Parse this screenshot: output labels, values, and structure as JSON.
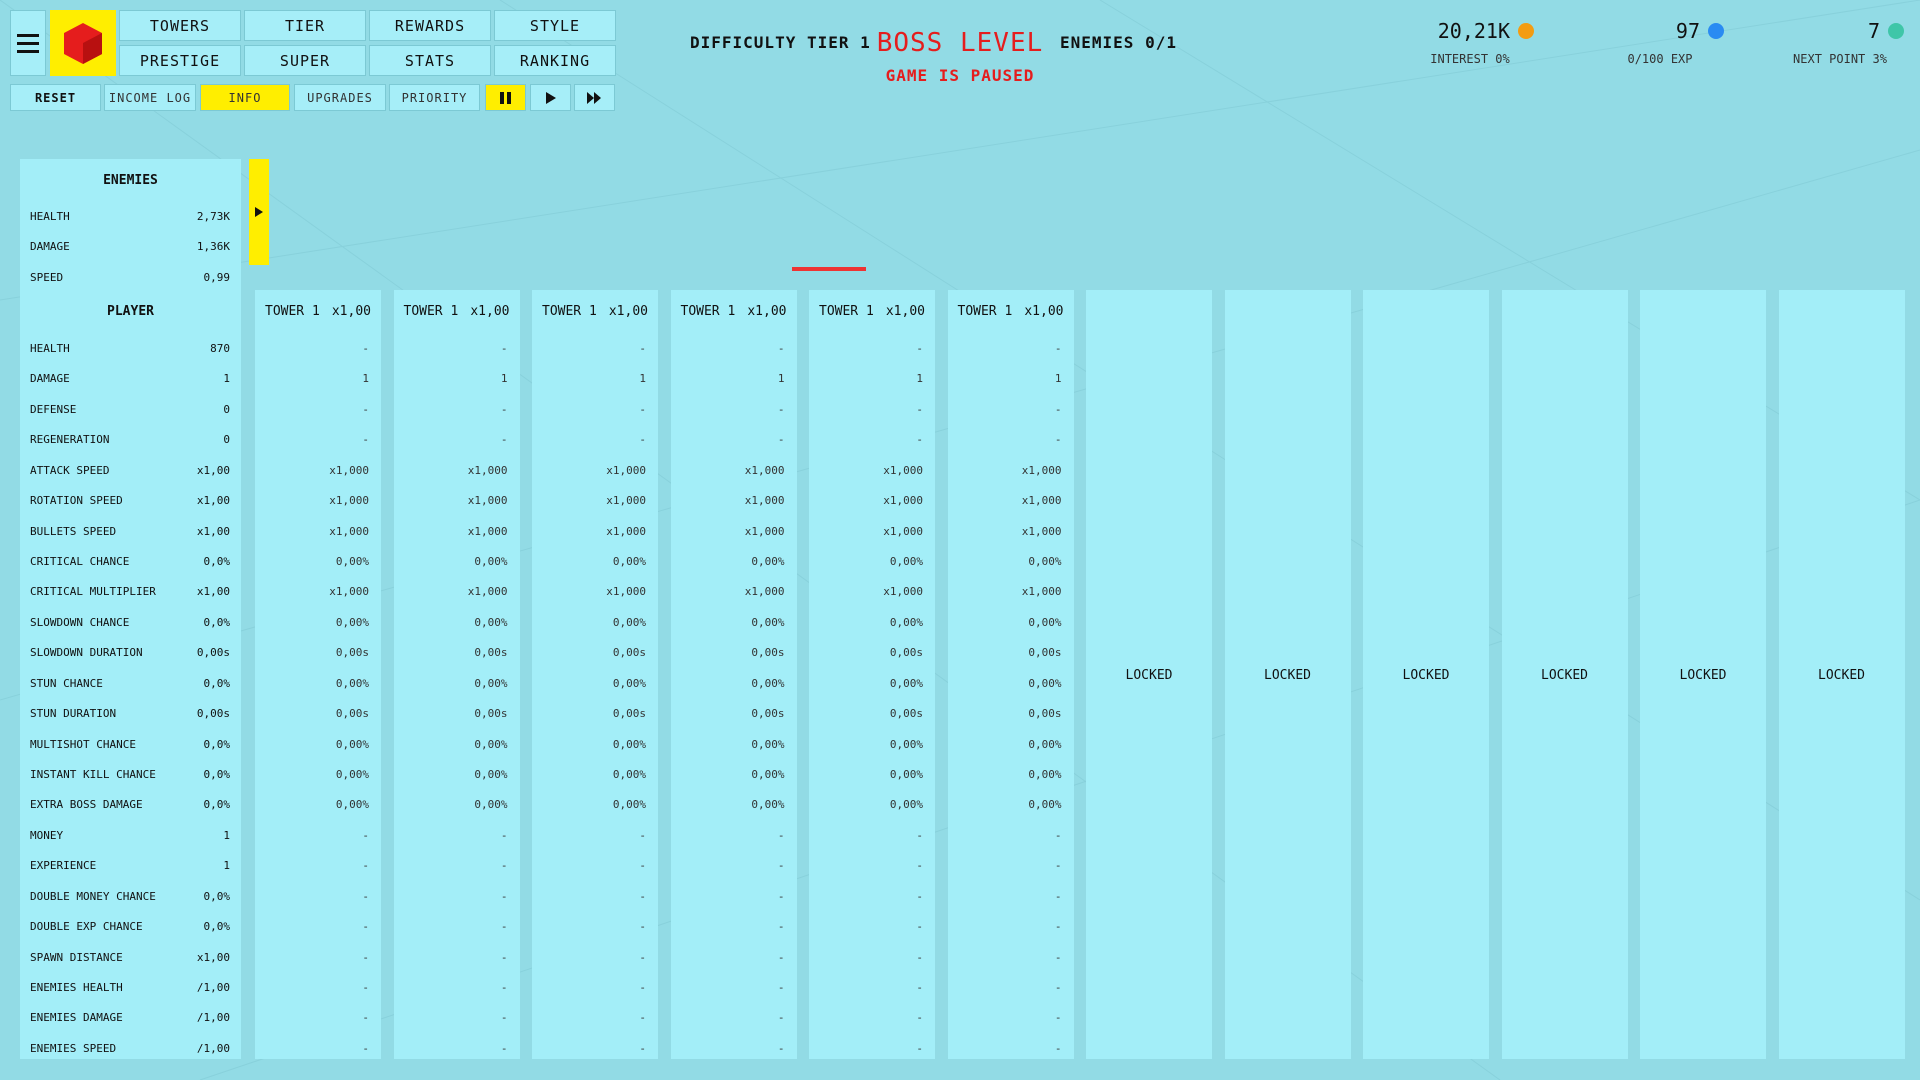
{
  "header": {
    "menu": [
      "TOWERS",
      "TIER",
      "REWARDS",
      "STYLE",
      "PRESTIGE",
      "SUPER",
      "STATS",
      "RANKING"
    ],
    "toolbar": [
      "RESET",
      "INCOME LOG",
      "INFO",
      "UPGRADES",
      "PRIORITY"
    ],
    "difficulty": "DIFFICULTY TIER 1",
    "boss": "BOSS LEVEL",
    "paused": "GAME IS PAUSED",
    "enemies": "ENEMIES 0/1",
    "resources": [
      {
        "value": "20,21K",
        "label": "INTEREST 0%"
      },
      {
        "value": "97",
        "label": "0/100 EXP"
      },
      {
        "value": "7",
        "label": "NEXT POINT 3%"
      }
    ]
  },
  "stats": {
    "enemies_title": "ENEMIES",
    "enemies": [
      [
        "HEALTH",
        "2,73K"
      ],
      [
        "DAMAGE",
        "1,36K"
      ],
      [
        "SPEED",
        "0,99"
      ]
    ],
    "player_title": "PLAYER",
    "player": [
      [
        "HEALTH",
        "870"
      ],
      [
        "DAMAGE",
        "1"
      ],
      [
        "DEFENSE",
        "0"
      ],
      [
        "REGENERATION",
        "0"
      ],
      [
        "ATTACK SPEED",
        "x1,00"
      ],
      [
        "ROTATION SPEED",
        "x1,00"
      ],
      [
        "BULLETS SPEED",
        "x1,00"
      ],
      [
        "CRITICAL CHANCE",
        "0,0%"
      ],
      [
        "CRITICAL MULTIPLIER",
        "x1,00"
      ],
      [
        "SLOWDOWN CHANCE",
        "0,0%"
      ],
      [
        "SLOWDOWN DURATION",
        "0,00s"
      ],
      [
        "STUN CHANCE",
        "0,0%"
      ],
      [
        "STUN DURATION",
        "0,00s"
      ],
      [
        "MULTISHOT CHANCE",
        "0,0%"
      ],
      [
        "INSTANT KILL CHANCE",
        "0,0%"
      ],
      [
        "EXTRA BOSS DAMAGE",
        "0,0%"
      ],
      [
        "MONEY",
        "1"
      ],
      [
        "EXPERIENCE",
        "1"
      ],
      [
        "DOUBLE MONEY CHANCE",
        "0,0%"
      ],
      [
        "DOUBLE EXP CHANCE",
        "0,0%"
      ],
      [
        "SPAWN DISTANCE",
        "x1,00"
      ],
      [
        "ENEMIES HEALTH",
        "/1,00"
      ],
      [
        "ENEMIES DAMAGE",
        "/1,00"
      ],
      [
        "ENEMIES SPEED",
        "/1,00"
      ]
    ]
  },
  "towers": [
    {
      "name": "TOWER 1",
      "mult": "x1,00",
      "values": [
        "-",
        "1",
        "-",
        "-",
        "x1,000",
        "x1,000",
        "x1,000",
        "0,00%",
        "x1,000",
        "0,00%",
        "0,00s",
        "0,00%",
        "0,00s",
        "0,00%",
        "0,00%",
        "0,00%",
        "-",
        "-",
        "-",
        "-",
        "-",
        "-",
        "-",
        "-"
      ]
    },
    {
      "name": "TOWER 1",
      "mult": "x1,00",
      "values": [
        "-",
        "1",
        "-",
        "-",
        "x1,000",
        "x1,000",
        "x1,000",
        "0,00%",
        "x1,000",
        "0,00%",
        "0,00s",
        "0,00%",
        "0,00s",
        "0,00%",
        "0,00%",
        "0,00%",
        "-",
        "-",
        "-",
        "-",
        "-",
        "-",
        "-",
        "-"
      ]
    },
    {
      "name": "TOWER 1",
      "mult": "x1,00",
      "values": [
        "-",
        "1",
        "-",
        "-",
        "x1,000",
        "x1,000",
        "x1,000",
        "0,00%",
        "x1,000",
        "0,00%",
        "0,00s",
        "0,00%",
        "0,00s",
        "0,00%",
        "0,00%",
        "0,00%",
        "-",
        "-",
        "-",
        "-",
        "-",
        "-",
        "-",
        "-"
      ]
    },
    {
      "name": "TOWER 1",
      "mult": "x1,00",
      "values": [
        "-",
        "1",
        "-",
        "-",
        "x1,000",
        "x1,000",
        "x1,000",
        "0,00%",
        "x1,000",
        "0,00%",
        "0,00s",
        "0,00%",
        "0,00s",
        "0,00%",
        "0,00%",
        "0,00%",
        "-",
        "-",
        "-",
        "-",
        "-",
        "-",
        "-",
        "-"
      ]
    },
    {
      "name": "TOWER 1",
      "mult": "x1,00",
      "values": [
        "-",
        "1",
        "-",
        "-",
        "x1,000",
        "x1,000",
        "x1,000",
        "0,00%",
        "x1,000",
        "0,00%",
        "0,00s",
        "0,00%",
        "0,00s",
        "0,00%",
        "0,00%",
        "0,00%",
        "-",
        "-",
        "-",
        "-",
        "-",
        "-",
        "-",
        "-"
      ]
    },
    {
      "name": "TOWER 1",
      "mult": "x1,00",
      "values": [
        "-",
        "1",
        "-",
        "-",
        "x1,000",
        "x1,000",
        "x1,000",
        "0,00%",
        "x1,000",
        "0,00%",
        "0,00s",
        "0,00%",
        "0,00s",
        "0,00%",
        "0,00%",
        "0,00%",
        "-",
        "-",
        "-",
        "-",
        "-",
        "-",
        "-",
        "-"
      ]
    }
  ],
  "locked": [
    "LOCKED",
    "LOCKED",
    "LOCKED",
    "LOCKED",
    "LOCKED",
    "LOCKED"
  ]
}
